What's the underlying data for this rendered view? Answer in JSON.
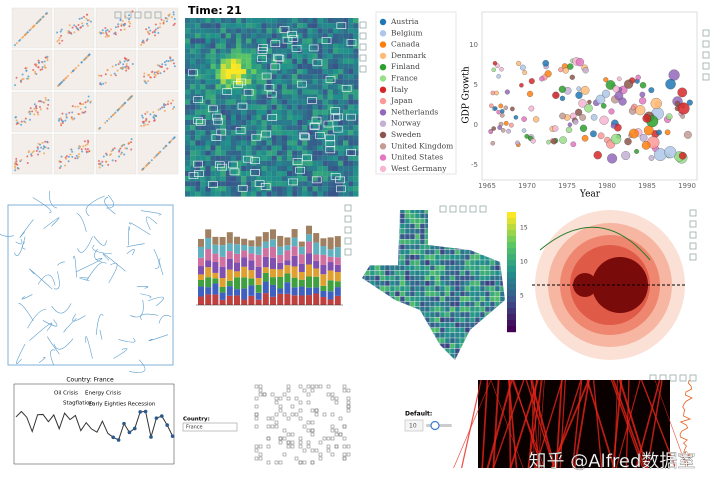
{
  "heatmap": {
    "title": "Time: 21"
  },
  "legend": {
    "items": [
      "Austria",
      "Belgium",
      "Canada",
      "Denmark",
      "Finland",
      "France",
      "Italy",
      "Japan",
      "Netherlands",
      "Norway",
      "Sweden",
      "United Kingdom",
      "United States",
      "West Germany"
    ]
  },
  "gdp": {
    "y_label": "GDP Growth",
    "x_label": "Year",
    "xticks": [
      "1965",
      "1970",
      "1975",
      "1980",
      "1985",
      "1990"
    ],
    "yticks": [
      "10",
      "5",
      "0",
      "-5"
    ]
  },
  "texas": {
    "colorbar_ticks": [
      "15",
      "10",
      "5"
    ]
  },
  "france": {
    "title": "Country: France",
    "annotations": [
      "Oil Crisis",
      "Stagflation",
      "Energy Crisis",
      "Early Eighties Recession"
    ]
  },
  "select": {
    "label": "Country:",
    "value": "France"
  },
  "slider": {
    "label": "Default:",
    "value": "10"
  },
  "watermark": "知乎 @Alfred数据室"
}
